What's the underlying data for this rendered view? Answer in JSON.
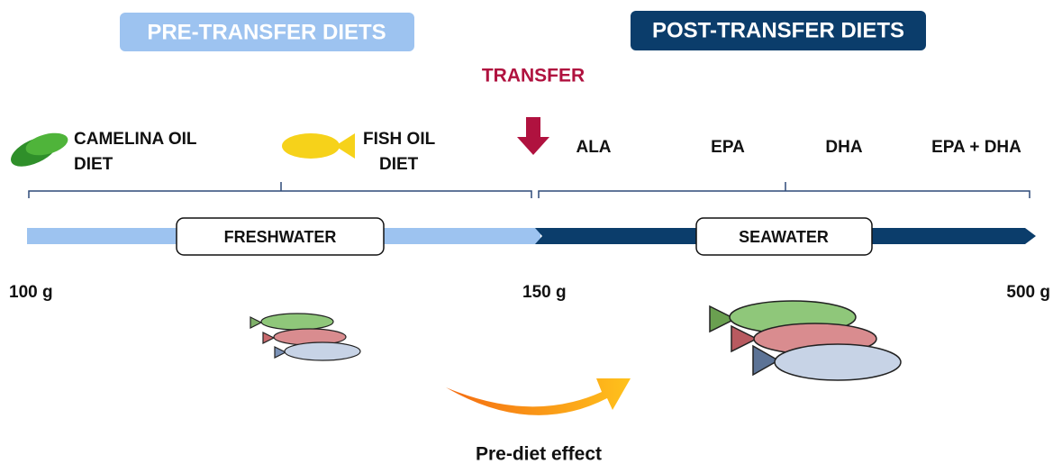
{
  "header": {
    "pre": "PRE-TRANSFER DIETS",
    "post": "POST-TRANSFER DIETS"
  },
  "transfer": "TRANSFER",
  "pre_diets": [
    {
      "lines": [
        "CAMELINA OIL",
        "DIET"
      ]
    },
    {
      "lines": [
        "FISH OIL",
        "DIET"
      ]
    }
  ],
  "post_diets": [
    "ALA",
    "EPA",
    "DHA",
    "EPA + DHA"
  ],
  "phases": {
    "freshwater": "FRESHWATER",
    "seawater": "SEAWATER"
  },
  "weights": [
    "100 g",
    "150 g",
    "500 g"
  ],
  "effect": "Pre-diet effect"
}
